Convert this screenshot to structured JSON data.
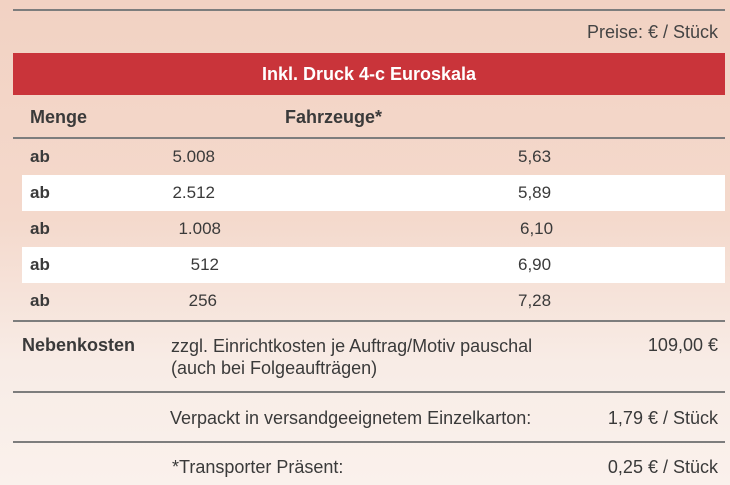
{
  "price_unit": "Preise: € / Stück",
  "header_bar": "Inkl. Druck 4-c Euroskala",
  "columns": {
    "menge": "Menge",
    "fahrzeuge": "Fahrzeuge*"
  },
  "rows": [
    {
      "prefix": "ab",
      "quantity": "5.008",
      "price": "5,63"
    },
    {
      "prefix": "ab",
      "quantity": "2.512",
      "price": "5,89"
    },
    {
      "prefix": "ab",
      "quantity": "1.008",
      "price": "6,10"
    },
    {
      "prefix": "ab",
      "quantity": "512",
      "price": "6,90"
    },
    {
      "prefix": "ab",
      "quantity": "256",
      "price": "7,28"
    }
  ],
  "nebenkosten": {
    "label": "Nebenkosten",
    "line1": "zzgl. Einrichtkosten je Auftrag/Motiv pauschal",
    "line2": "(auch bei Folgeaufträgen)",
    "price": "109,00 €"
  },
  "verpackung": {
    "text": "Verpackt in versandgeeignetem Einzelkarton:",
    "price": "1,79 € / Stück"
  },
  "transport": {
    "text": "*Transporter Präsent:",
    "price": "0,25 € / Stück"
  },
  "colors": {
    "accent_red": "#c9343a",
    "rule_gray": "#7d7d7d"
  }
}
